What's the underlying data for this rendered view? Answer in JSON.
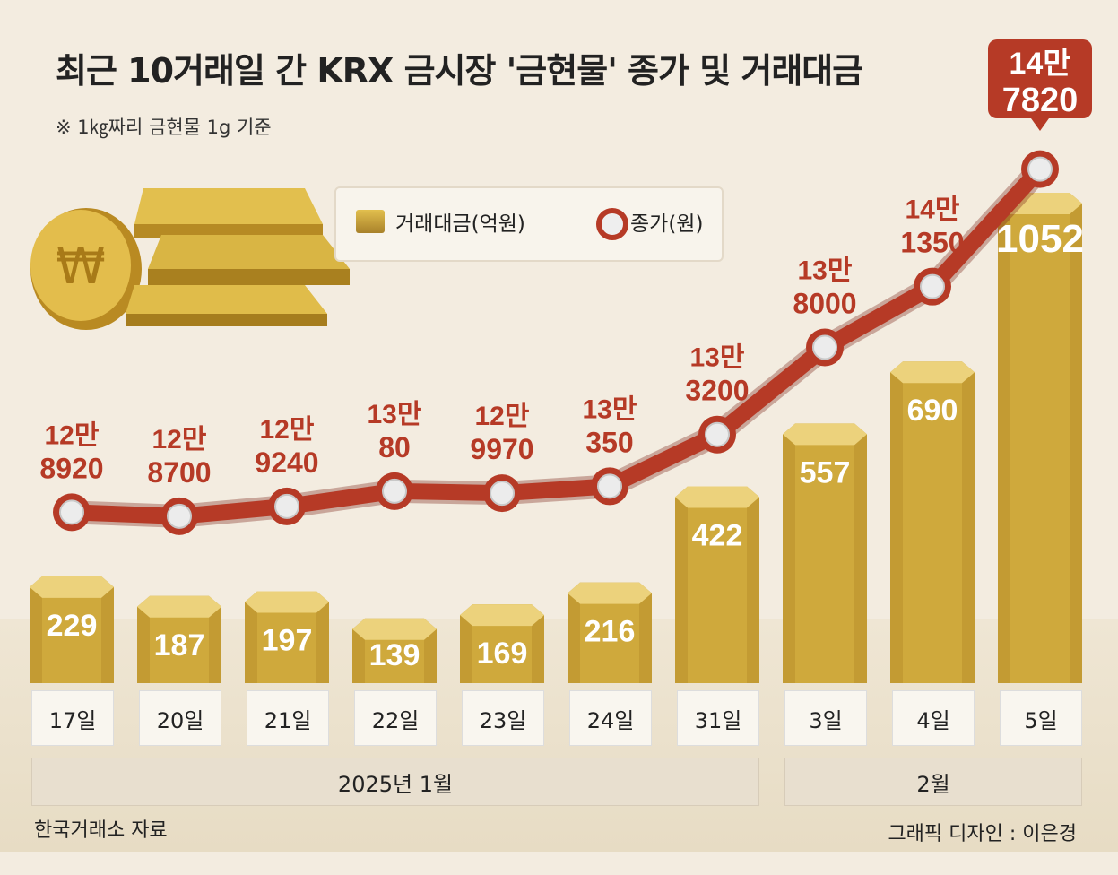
{
  "header": {
    "title": "최근 10거래일 간 KRX 금시장 '금현물' 종가 및 거래대금",
    "subnote": "※ 1㎏짜리 금현물 1g 기준"
  },
  "legend": {
    "volume_label": "거래대금(억원)",
    "price_label": "종가(원)"
  },
  "chart_data": {
    "type": "bar",
    "title": "최근 10거래일 간 KRX 금시장 '금현물' 종가 및 거래대금",
    "categories": [
      "17일",
      "20일",
      "21일",
      "22일",
      "23일",
      "24일",
      "31일",
      "3일",
      "4일",
      "5일"
    ],
    "month_groups": [
      {
        "label": "2025년 1월",
        "count": 7
      },
      {
        "label": "2월",
        "count": 3
      }
    ],
    "series": [
      {
        "name": "거래대금(억원)",
        "type": "bar",
        "values": [
          229,
          187,
          197,
          139,
          169,
          216,
          422,
          557,
          690,
          1052
        ]
      },
      {
        "name": "종가(원)",
        "type": "line",
        "values": [
          128920,
          128700,
          129240,
          130080,
          129970,
          130350,
          133200,
          138000,
          141350,
          147820
        ],
        "labels": [
          [
            "12만",
            "8920"
          ],
          [
            "12만",
            "8700"
          ],
          [
            "12만",
            "9240"
          ],
          [
            "13만",
            "80"
          ],
          [
            "12만",
            "9970"
          ],
          [
            "13만",
            "350"
          ],
          [
            "13만",
            "3200"
          ],
          [
            "13만",
            "8000"
          ],
          [
            "14만",
            "1350"
          ],
          [
            "14만",
            "7820"
          ]
        ]
      }
    ],
    "colors": {
      "bar": "#c9a43a",
      "line": "#b63a26",
      "marker": "#e8e8e8"
    }
  },
  "footer": {
    "source": "한국거래소 자료",
    "credit": "그래픽 디자인 : 이은경"
  }
}
